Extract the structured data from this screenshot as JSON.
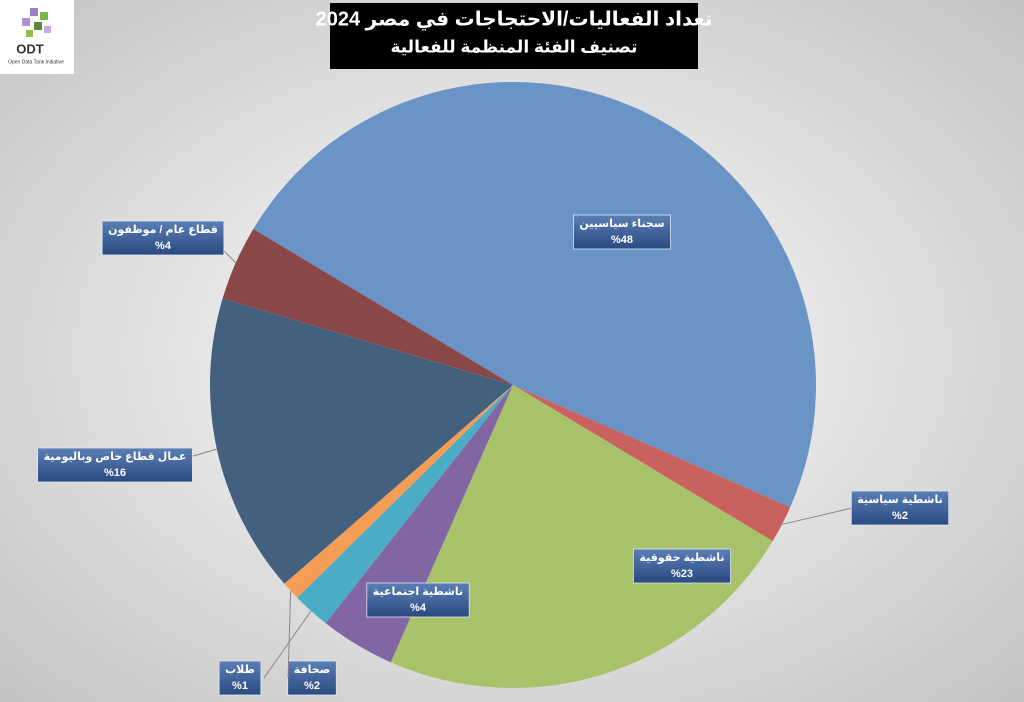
{
  "logo": {
    "name": "ODT",
    "tagline": "Open Data Tank Initiative"
  },
  "chart_data": {
    "type": "pie",
    "title": "تعداد الفعاليات/الاحتجاجات في مصر 2024",
    "subtitle": "تصنيف الفئة المنظمة للفعالية",
    "categories": [
      "سجناء سياسيين",
      "ناشطية سياسية",
      "ناشطية حقوقية",
      "ناشطية اجتماعية",
      "صحافة",
      "طلاب",
      "عمال قطاع خاص وباليومية",
      "قطاع عام / موظفون"
    ],
    "values": [
      48,
      2,
      23,
      4,
      2,
      1,
      16,
      4
    ],
    "value_labels": [
      "%48",
      "%2",
      "%23",
      "%4",
      "%2",
      "%1",
      "%16",
      "%4"
    ],
    "colors": [
      "#6a93c6",
      "#c9625f",
      "#a8c26a",
      "#8266a3",
      "#4bacc6",
      "#f59d55",
      "#44607f",
      "#8a4747"
    ]
  }
}
